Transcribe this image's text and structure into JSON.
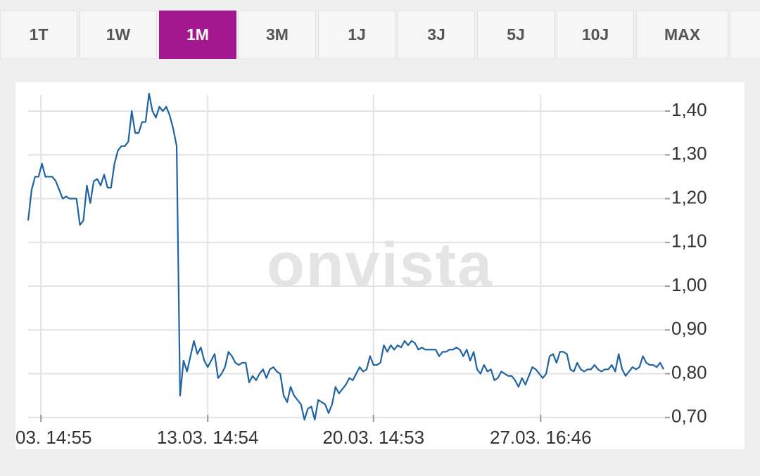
{
  "tabs": [
    "1T",
    "1W",
    "1M",
    "3M",
    "1J",
    "3J",
    "5J",
    "10J",
    "MAX",
    ""
  ],
  "active_tab_index": 2,
  "chart_data": {
    "type": "line",
    "watermark": "onvista",
    "series": [
      {
        "color": "#1f63a3",
        "values": [
          1.15,
          1.22,
          1.25,
          1.25,
          1.28,
          1.25,
          1.25,
          1.25,
          1.24,
          1.22,
          1.2,
          1.205,
          1.2,
          1.2,
          1.2,
          1.14,
          1.15,
          1.23,
          1.19,
          1.24,
          1.245,
          1.23,
          1.255,
          1.225,
          1.225,
          1.28,
          1.31,
          1.32,
          1.32,
          1.33,
          1.4,
          1.35,
          1.35,
          1.375,
          1.375,
          1.44,
          1.4,
          1.385,
          1.41,
          1.4,
          1.41,
          1.39,
          1.36,
          1.32,
          0.75,
          0.83,
          0.805,
          0.84,
          0.875,
          0.845,
          0.86,
          0.83,
          0.815,
          0.83,
          0.845,
          0.79,
          0.8,
          0.815,
          0.85,
          0.84,
          0.825,
          0.82,
          0.825,
          0.825,
          0.78,
          0.795,
          0.785,
          0.8,
          0.81,
          0.79,
          0.81,
          0.815,
          0.805,
          0.8,
          0.75,
          0.735,
          0.77,
          0.75,
          0.74,
          0.73,
          0.695,
          0.72,
          0.725,
          0.695,
          0.74,
          0.735,
          0.73,
          0.71,
          0.73,
          0.77,
          0.755,
          0.765,
          0.775,
          0.79,
          0.785,
          0.8,
          0.815,
          0.805,
          0.81,
          0.84,
          0.82,
          0.82,
          0.825,
          0.865,
          0.85,
          0.865,
          0.855,
          0.865,
          0.86,
          0.875,
          0.865,
          0.875,
          0.87,
          0.855,
          0.86,
          0.855,
          0.855,
          0.855,
          0.855,
          0.84,
          0.85,
          0.85,
          0.855,
          0.855,
          0.86,
          0.855,
          0.84,
          0.855,
          0.83,
          0.85,
          0.81,
          0.8,
          0.82,
          0.805,
          0.81,
          0.785,
          0.79,
          0.805,
          0.8,
          0.795,
          0.795,
          0.785,
          0.77,
          0.79,
          0.775,
          0.795,
          0.815,
          0.81,
          0.8,
          0.79,
          0.8,
          0.84,
          0.845,
          0.825,
          0.85,
          0.85,
          0.845,
          0.81,
          0.805,
          0.825,
          0.81,
          0.805,
          0.81,
          0.81,
          0.82,
          0.81,
          0.805,
          0.81,
          0.81,
          0.82,
          0.805,
          0.845,
          0.81,
          0.795,
          0.805,
          0.815,
          0.81,
          0.815,
          0.84,
          0.825,
          0.82,
          0.82,
          0.815,
          0.825,
          0.81
        ]
      }
    ],
    "xlim": [
      0,
      184
    ],
    "xticks": [
      {
        "value": 3.7,
        "label": "03. 14:55"
      },
      {
        "value": 52.0,
        "label": "13.03. 14:54"
      },
      {
        "value": 100.0,
        "label": "20.03. 14:53"
      },
      {
        "value": 148.4,
        "label": "27.03. 16:46"
      }
    ],
    "ylim": [
      0.69,
      1.445
    ],
    "yticks": [
      {
        "value": 0.7,
        "label": "0,70"
      },
      {
        "value": 0.8,
        "label": "0,80"
      },
      {
        "value": 0.9,
        "label": "0,90"
      },
      {
        "value": 1.0,
        "label": "1,00"
      },
      {
        "value": 1.1,
        "label": "1,10"
      },
      {
        "value": 1.2,
        "label": "1,20"
      },
      {
        "value": 1.3,
        "label": "1,30"
      },
      {
        "value": 1.4,
        "label": "1,40"
      }
    ],
    "grid": true
  }
}
